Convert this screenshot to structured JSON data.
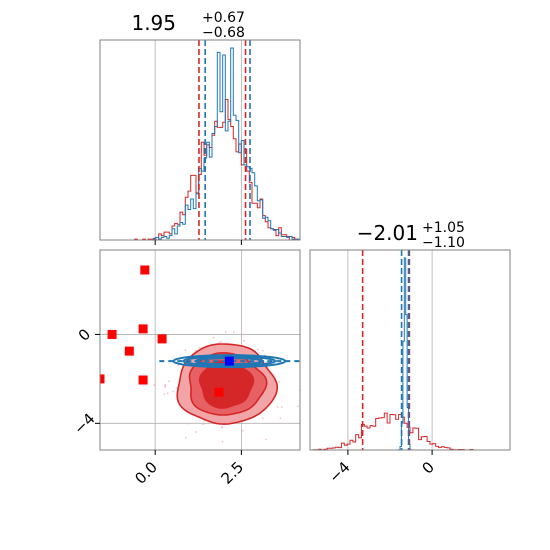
{
  "chart_data": {
    "type": "corner",
    "series": [
      {
        "name": "",
        "color": "#1f77b4"
      },
      {
        "name": "",
        "color": "#d62728"
      }
    ],
    "parameters": [
      {
        "title_value": "1.95",
        "title_upper": "+0.67",
        "title_lower": "−0.68",
        "xlim": [
          -1.6,
          4.2
        ],
        "ticks": [
          0.0,
          2.5
        ],
        "tick_labels": [
          "0.0",
          "2.5"
        ],
        "quantiles": {
          "#d62728": [
            1.27,
            2.62
          ],
          "#1f77b4": [
            1.45,
            2.75
          ]
        }
      },
      {
        "title_value": "−2.01",
        "title_upper": "+1.05",
        "title_lower": "−1.10",
        "xlim": [
          -5.8,
          3.7
        ],
        "ticks": [
          -4,
          0
        ],
        "tick_labels": [
          "−4",
          "0"
        ],
        "quantiles": {
          "#d62728": [
            -3.3,
            -1.08
          ],
          "#1f77b4": [
            -1.45,
            -1.12
          ]
        }
      }
    ],
    "joint": {
      "ylim": [
        -5.2,
        3.8
      ],
      "yticks": [
        0,
        -4
      ],
      "ytick_labels": [
        "0",
        "−4"
      ],
      "red_points": [
        [
          -0.3,
          2.9
        ],
        [
          -1.25,
          0.0
        ],
        [
          -0.35,
          0.25
        ],
        [
          0.2,
          -0.2
        ],
        [
          -0.75,
          -0.75
        ],
        [
          -1.6,
          -2.0
        ],
        [
          -0.35,
          -2.05
        ],
        [
          1.85,
          -2.6
        ]
      ],
      "blue_points": [
        [
          2.15,
          -1.2
        ]
      ],
      "red_center": [
        2.05,
        -2.25
      ],
      "blue_center": [
        2.15,
        -1.2
      ]
    },
    "grid": true,
    "legend": "none"
  }
}
